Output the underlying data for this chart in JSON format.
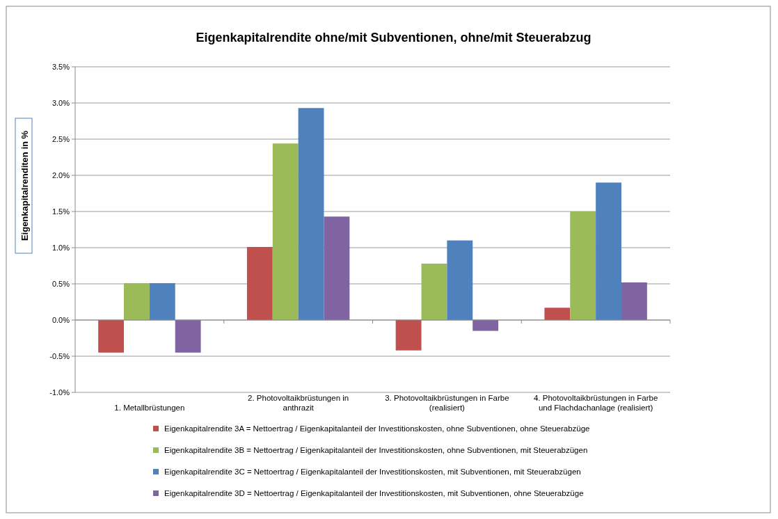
{
  "chart_data": {
    "type": "bar",
    "title": "Eigenkapitalrendite ohne/mit Subventionen, ohne/mit Steuerabzug",
    "ylabel": "Eigenkapitalrenditen in %",
    "categories": [
      "1. Metallbrüstungen",
      "2. Photovoltaikbrüstungen in anthrazit",
      "3. Photovoltaikbrüstungen in Farbe (realisiert)",
      "4. Photovoltaikbrüstungen in Farbe und Flachdachanlage (realisiert)"
    ],
    "series": [
      {
        "name": "Eigenkapitalrendite 3A = Nettoertrag / Eigenkapitalanteil der Investitionskosten, ohne Subventionen, ohne Steuerabzüge",
        "color": "#c0504d",
        "values": [
          -0.45,
          1.01,
          -0.42,
          0.17
        ]
      },
      {
        "name": "Eigenkapitalrendite 3B = Nettoertrag / Eigenkapitalanteil der Investitionskosten, ohne Subventionen, mit Steuerabzügen",
        "color": "#9bbb59",
        "values": [
          0.51,
          2.44,
          0.78,
          1.5
        ]
      },
      {
        "name": "Eigenkapitalrendite 3C = Nettoertrag / Eigenkapitalanteil der Investitionskosten, mit Subventionen, mit Steuerabzügen",
        "color": "#4f81bd",
        "values": [
          0.51,
          2.93,
          1.1,
          1.9
        ]
      },
      {
        "name": "Eigenkapitalrendite 3D = Nettoertrag / Eigenkapitalanteil der Investitionskosten, mit Subventionen, ohne Steuerabzüge",
        "color": "#8064a2",
        "values": [
          -0.45,
          1.43,
          -0.15,
          0.52
        ]
      }
    ],
    "ylim": [
      -1.0,
      3.5
    ],
    "yticks": [
      {
        "value": -1.0,
        "label": "-1.0%"
      },
      {
        "value": -0.5,
        "label": "-0.5%"
      },
      {
        "value": 0,
        "label": "0.0%"
      },
      {
        "value": 0.5,
        "label": "0.5%"
      },
      {
        "value": 1.0,
        "label": "1.0%"
      },
      {
        "value": 1.5,
        "label": "1.5%"
      },
      {
        "value": 2.0,
        "label": "2.0%"
      },
      {
        "value": 2.5,
        "label": "2.5%"
      },
      {
        "value": 3.0,
        "label": "3.0%"
      },
      {
        "value": 3.5,
        "label": "3.5%"
      }
    ],
    "grid": "y",
    "legend": "bottom"
  }
}
